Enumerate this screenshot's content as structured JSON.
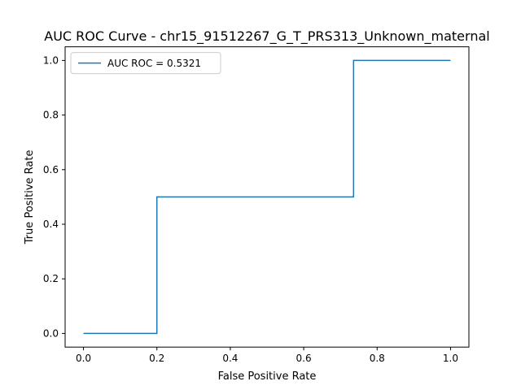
{
  "chart_data": {
    "type": "line",
    "title": "AUC ROC Curve - chr15_91512267_G_T_PRS313_Unknown_maternal",
    "xlabel": "False Positive Rate",
    "ylabel": "True Positive Rate",
    "xlim": [
      -0.05,
      1.05
    ],
    "ylim": [
      -0.05,
      1.05
    ],
    "xticks": [
      0.0,
      0.2,
      0.4,
      0.6,
      0.8,
      1.0
    ],
    "yticks": [
      0.0,
      0.2,
      0.4,
      0.6,
      0.8,
      1.0
    ],
    "xtick_labels": [
      "0.0",
      "0.2",
      "0.4",
      "0.6",
      "0.8",
      "1.0"
    ],
    "ytick_labels": [
      "0.0",
      "0.2",
      "0.4",
      "0.6",
      "0.8",
      "1.0"
    ],
    "grid": false,
    "legend_position": "top-left",
    "series": [
      {
        "name": "AUC ROC = 0.5321",
        "color": "#1f77b4",
        "x": [
          0.0,
          0.2,
          0.2,
          0.7358,
          0.7358,
          1.0
        ],
        "y": [
          0.0,
          0.0,
          0.5,
          0.5,
          1.0,
          1.0
        ]
      }
    ]
  }
}
